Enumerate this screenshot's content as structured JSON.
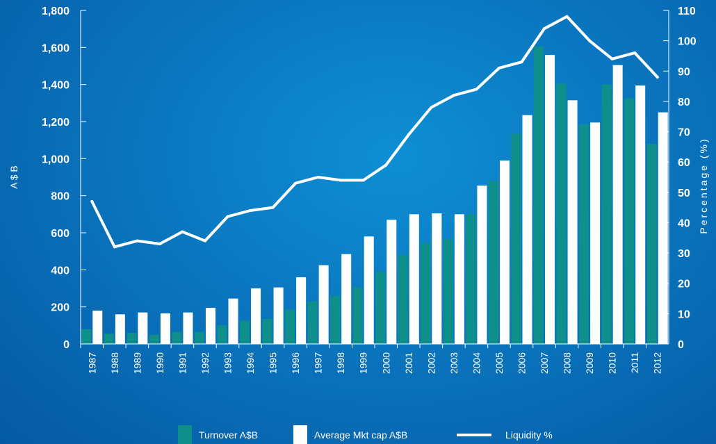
{
  "chart_data": {
    "type": "bar",
    "categories": [
      "1987",
      "1988",
      "1989",
      "1990",
      "1991",
      "1992",
      "1993",
      "1994",
      "1995",
      "1996",
      "1997",
      "1998",
      "1999",
      "2000",
      "2001",
      "2002",
      "2003",
      "2004",
      "2005",
      "2006",
      "2007",
      "2008",
      "2009",
      "2010",
      "2011",
      "2012"
    ],
    "series": [
      {
        "name": "Turnover A$B",
        "type": "bar",
        "axis": "left",
        "color": "#0e8f8a",
        "values": [
          80,
          55,
          60,
          50,
          65,
          65,
          100,
          125,
          135,
          185,
          230,
          260,
          305,
          390,
          480,
          545,
          565,
          700,
          880,
          1135,
          1605,
          1405,
          1185,
          1400,
          1325,
          1080
        ]
      },
      {
        "name": "Average Mkt cap A$B",
        "type": "bar",
        "axis": "left",
        "color": "#ffffff",
        "values": [
          180,
          160,
          170,
          165,
          170,
          195,
          245,
          300,
          305,
          360,
          425,
          485,
          580,
          670,
          700,
          705,
          700,
          855,
          990,
          1235,
          1560,
          1315,
          1195,
          1505,
          1395,
          1250
        ]
      },
      {
        "name": "Liquidity %",
        "type": "line",
        "axis": "right",
        "color": "#ffffff",
        "values": [
          47,
          32,
          34,
          33,
          37,
          34,
          42,
          44,
          45,
          53,
          55,
          54,
          54,
          59,
          69,
          78,
          82,
          84,
          91,
          93,
          104,
          108,
          100,
          94,
          96,
          88
        ]
      }
    ],
    "ylabel": "A $ B",
    "ylabel_right": "Percentage (%)",
    "ylim": [
      0,
      1800
    ],
    "ylim_right": [
      0,
      110
    ],
    "yticks": [
      "0",
      "200",
      "400",
      "600",
      "800",
      "1,000",
      "1,200",
      "1,400",
      "1,600",
      "1,800"
    ],
    "yticks_right": [
      "0",
      "10",
      "20",
      "30",
      "40",
      "50",
      "60",
      "70",
      "80",
      "90",
      "100",
      "110"
    ],
    "grid": false,
    "legend_position": "bottom"
  },
  "legend": {
    "turnover": "Turnover A$B",
    "mktcap": "Average Mkt cap A$B",
    "liquidity": "Liquidity %"
  }
}
